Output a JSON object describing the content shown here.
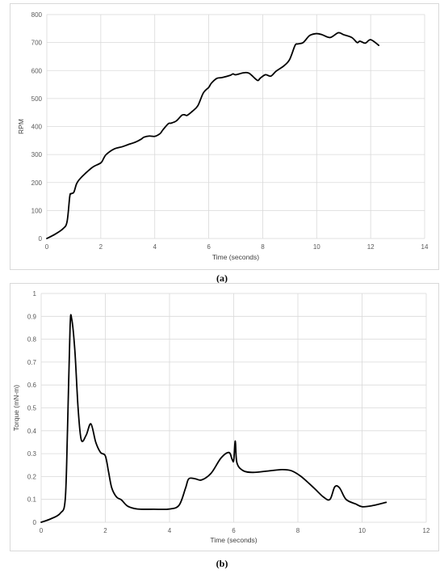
{
  "chart_data": [
    {
      "id": "a",
      "type": "line",
      "title": "",
      "xlabel": "Time (seconds)",
      "ylabel": "RPM",
      "xlim": [
        0,
        14
      ],
      "ylim": [
        0,
        800
      ],
      "xticks": [
        0,
        2,
        4,
        6,
        8,
        10,
        12,
        14
      ],
      "yticks": [
        0,
        100,
        200,
        300,
        400,
        500,
        600,
        700,
        800
      ],
      "grid": true,
      "legend": "none",
      "series": [
        {
          "x": [
            0,
            0.3,
            0.6,
            0.75,
            0.85,
            0.9,
            1.0,
            1.1,
            1.2,
            1.4,
            1.7,
            2.0,
            2.1,
            2.2,
            2.5,
            2.8,
            3.0,
            3.3,
            3.5,
            3.6,
            3.8,
            4.0,
            4.2,
            4.3,
            4.5,
            4.6,
            4.8,
            5.0,
            5.1,
            5.2,
            5.4,
            5.6,
            5.8,
            6.0,
            6.1,
            6.3,
            6.5,
            6.8,
            6.9,
            7.0,
            7.3,
            7.5,
            7.8,
            7.9,
            8.1,
            8.3,
            8.5,
            8.8,
            9.0,
            9.2,
            9.3,
            9.5,
            9.7,
            9.8,
            10.0,
            10.2,
            10.5,
            10.8,
            11.0,
            11.3,
            11.5,
            11.6,
            11.8,
            12.0,
            12.3
          ],
          "y": [
            0,
            15,
            35,
            60,
            150,
            160,
            165,
            195,
            210,
            230,
            255,
            270,
            285,
            300,
            320,
            328,
            335,
            345,
            355,
            362,
            366,
            365,
            375,
            388,
            410,
            412,
            420,
            440,
            442,
            440,
            455,
            475,
            520,
            540,
            555,
            572,
            575,
            583,
            588,
            585,
            592,
            590,
            565,
            572,
            585,
            580,
            598,
            618,
            640,
            690,
            695,
            700,
            722,
            728,
            732,
            728,
            718,
            735,
            728,
            718,
            700,
            705,
            698,
            710,
            690
          ]
        }
      ]
    },
    {
      "id": "b",
      "type": "line",
      "title": "",
      "xlabel": "Time (seconds)",
      "ylabel": "Torque (mN-m)",
      "xlim": [
        0,
        12
      ],
      "ylim": [
        0,
        1
      ],
      "xticks": [
        0,
        2,
        4,
        6,
        8,
        10,
        12
      ],
      "yticks": [
        0,
        0.1,
        0.2,
        0.3,
        0.4,
        0.5,
        0.6,
        0.7,
        0.8,
        0.9,
        1
      ],
      "grid": true,
      "legend": "none",
      "series": [
        {
          "x": [
            0,
            0.3,
            0.6,
            0.75,
            0.82,
            0.9,
            0.95,
            1.05,
            1.15,
            1.25,
            1.4,
            1.55,
            1.7,
            1.85,
            2.0,
            2.1,
            2.2,
            2.35,
            2.5,
            2.7,
            3.0,
            3.5,
            4.0,
            4.3,
            4.5,
            4.6,
            4.8,
            5.0,
            5.3,
            5.6,
            5.85,
            5.95,
            6.0,
            6.05,
            6.1,
            6.3,
            6.6,
            7.0,
            7.5,
            7.8,
            8.1,
            8.5,
            8.8,
            9.0,
            9.15,
            9.3,
            9.5,
            9.8,
            10.0,
            10.3,
            10.75
          ],
          "y": [
            0,
            0.015,
            0.04,
            0.1,
            0.4,
            0.85,
            0.89,
            0.75,
            0.5,
            0.36,
            0.38,
            0.43,
            0.35,
            0.305,
            0.29,
            0.22,
            0.15,
            0.11,
            0.098,
            0.07,
            0.058,
            0.057,
            0.058,
            0.075,
            0.15,
            0.19,
            0.19,
            0.185,
            0.215,
            0.28,
            0.305,
            0.275,
            0.27,
            0.355,
            0.26,
            0.225,
            0.218,
            0.223,
            0.23,
            0.225,
            0.2,
            0.15,
            0.11,
            0.1,
            0.155,
            0.15,
            0.1,
            0.08,
            0.068,
            0.072,
            0.087
          ]
        }
      ]
    }
  ],
  "captions": {
    "a": "(a)",
    "b": "(b)"
  }
}
